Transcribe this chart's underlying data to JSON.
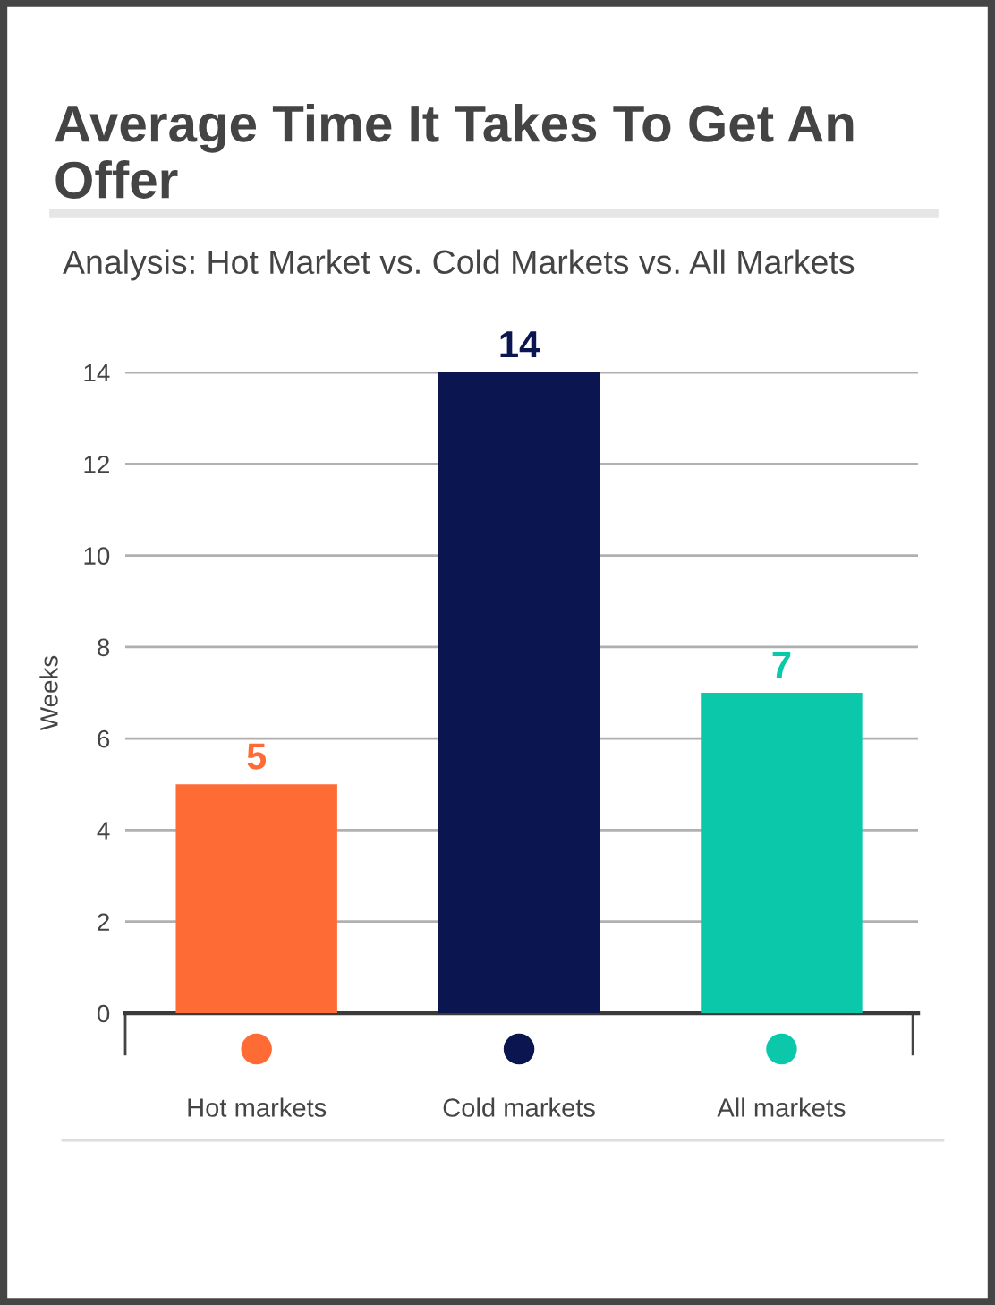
{
  "chart_data": {
    "type": "bar",
    "title": "Average Time It Takes To Get An Offer",
    "subtitle": "Analysis: Hot Market vs. Cold Markets vs. All Markets",
    "ylabel": "Weeks",
    "categories": [
      "Hot markets",
      "Cold markets",
      "All markets"
    ],
    "values": [
      5,
      14,
      7
    ],
    "colors": [
      "#ff6b35",
      "#0b1550",
      "#0bc8aa"
    ],
    "ylim": [
      0,
      14
    ],
    "yticks": [
      0,
      2,
      4,
      6,
      8,
      10,
      12,
      14
    ],
    "grid": "y",
    "data_labels": true
  }
}
